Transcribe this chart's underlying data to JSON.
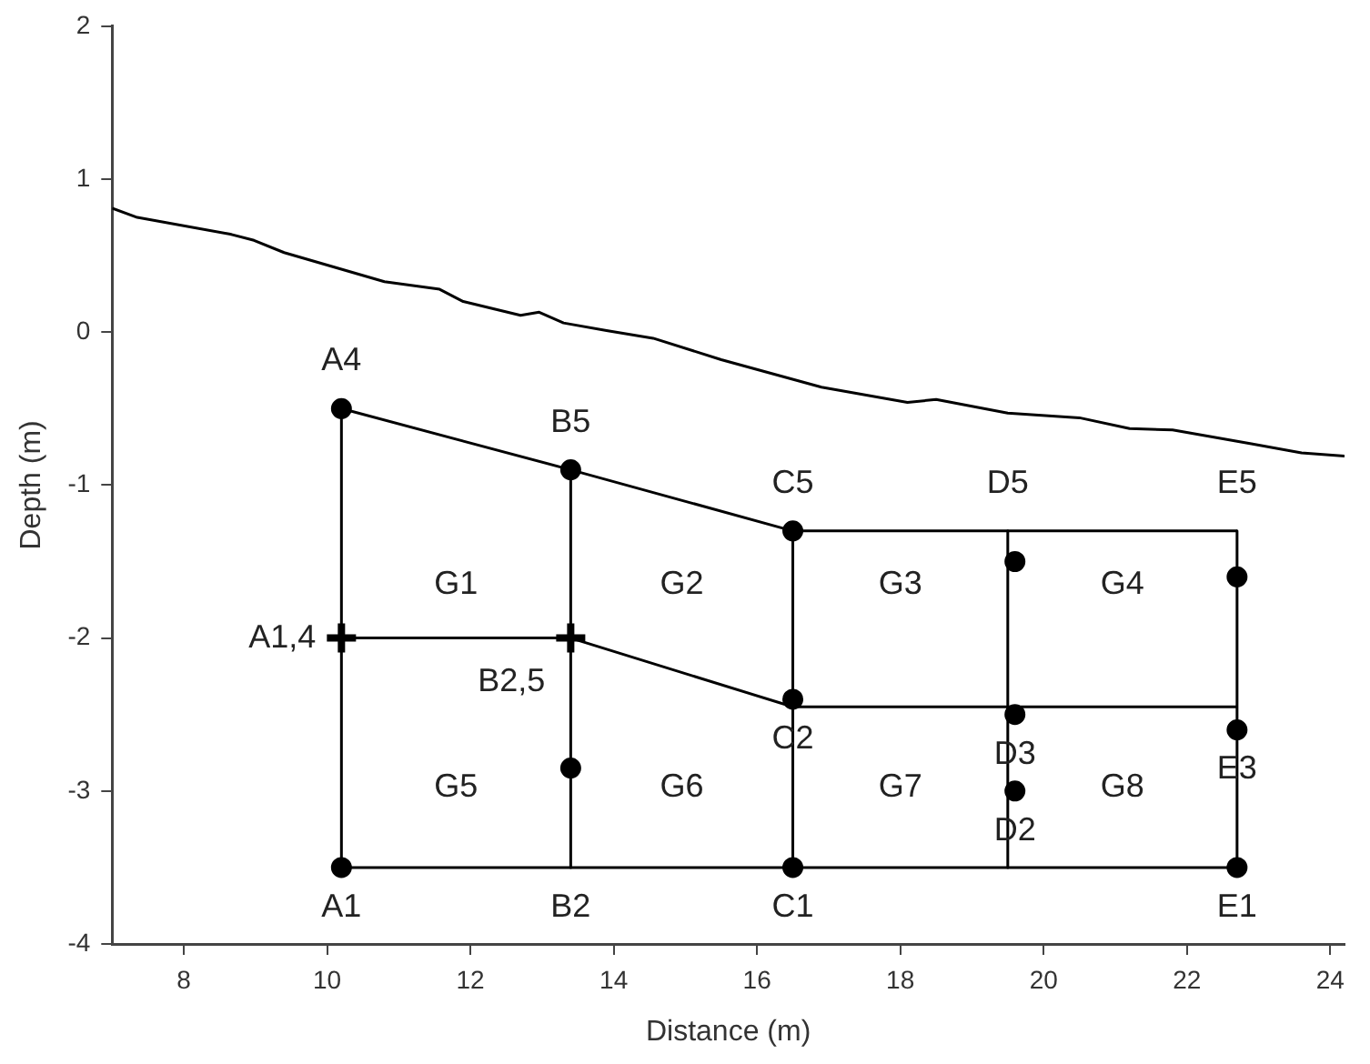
{
  "chart_data": {
    "type": "line",
    "xlabel": "Distance (m)",
    "ylabel": "Depth (m)",
    "xlim": [
      7,
      24.2
    ],
    "ylim": [
      -4,
      2
    ],
    "xticks": [
      8,
      10,
      12,
      14,
      16,
      18,
      20,
      22,
      24
    ],
    "yticks": [
      -4,
      -3,
      -2,
      -1,
      0,
      1,
      2
    ],
    "grid": false,
    "series": [
      {
        "type": "line",
        "marker": "none",
        "color": "#000000",
        "x": [
          7,
          7.35,
          8.65,
          8.98,
          9.4,
          10.8,
          11.57,
          11.9,
          12.7,
          12.96,
          13.3,
          13.9,
          14.55,
          15.5,
          16.9,
          18.1,
          18.5,
          19.5,
          20.5,
          21.2,
          21.8,
          22.9,
          23.6,
          24.2
        ],
        "values": [
          0.81,
          0.75,
          0.64,
          0.6,
          0.52,
          0.33,
          0.28,
          0.2,
          0.11,
          0.13,
          0.06,
          0.01,
          -0.04,
          -0.18,
          -0.36,
          -0.46,
          -0.44,
          -0.53,
          -0.56,
          -0.63,
          -0.64,
          -0.73,
          -0.79,
          -0.81
        ]
      },
      {
        "type": "line",
        "marker": "none",
        "color": "#000000",
        "x": [
          10.2,
          13.4,
          16.5,
          22.7
        ],
        "values": [
          -0.5,
          -0.9,
          -1.3,
          -1.3
        ]
      },
      {
        "type": "line",
        "marker": "none",
        "color": "#000000",
        "x": [
          10.2,
          13.4,
          16.5,
          22.7
        ],
        "values": [
          -2.0,
          -2.0,
          -2.45,
          -2.45
        ]
      },
      {
        "type": "line",
        "marker": "none",
        "color": "#000000",
        "x": [
          10.2,
          22.7
        ],
        "values": [
          -3.5,
          -3.5
        ]
      },
      {
        "type": "line",
        "marker": "none",
        "color": "#000000",
        "x": [
          10.2,
          10.2
        ],
        "values": [
          -0.5,
          -3.5
        ]
      },
      {
        "type": "line",
        "marker": "none",
        "color": "#000000",
        "x": [
          13.4,
          13.4
        ],
        "values": [
          -0.9,
          -3.5
        ]
      },
      {
        "type": "line",
        "marker": "none",
        "color": "#000000",
        "x": [
          16.5,
          16.5
        ],
        "values": [
          -1.3,
          -3.5
        ]
      },
      {
        "type": "line",
        "marker": "none",
        "color": "#000000",
        "x": [
          19.5,
          19.5
        ],
        "values": [
          -1.3,
          -3.5
        ]
      },
      {
        "type": "line",
        "marker": "none",
        "color": "#000000",
        "x": [
          22.7,
          22.7
        ],
        "values": [
          -1.3,
          -3.5
        ]
      },
      {
        "type": "scatter",
        "marker": "circle",
        "color": "#000000",
        "x": [
          10.2,
          13.4,
          16.5,
          19.6,
          22.7,
          16.5,
          19.6,
          19.6,
          22.7,
          13.4,
          10.2,
          16.5,
          22.7
        ],
        "values": [
          -0.5,
          -0.9,
          -1.3,
          -1.5,
          -1.6,
          -2.4,
          -2.5,
          -3.0,
          -2.6,
          -2.85,
          -3.5,
          -3.5,
          -3.5
        ]
      },
      {
        "type": "scatter",
        "marker": "cross",
        "color": "#000000",
        "x": [
          10.2,
          13.4
        ],
        "values": [
          -2.0,
          -2.0
        ]
      }
    ],
    "annotations": [
      {
        "text": "A4",
        "x": 10.2,
        "y": -0.5
      },
      {
        "text": "B5",
        "x": 13.4,
        "y": -0.9
      },
      {
        "text": "C5",
        "x": 16.5,
        "y": -1.3
      },
      {
        "text": "D5",
        "x": 19.5,
        "y": -1.3
      },
      {
        "text": "E5",
        "x": 22.7,
        "y": -1.3
      },
      {
        "text": "A1,4",
        "x": 10.2,
        "y": -2.0
      },
      {
        "text": "B2,5",
        "x": 13.4,
        "y": -2.0
      },
      {
        "text": "C2",
        "x": 16.5,
        "y": -2.4
      },
      {
        "text": "D3",
        "x": 19.6,
        "y": -2.5
      },
      {
        "text": "D2",
        "x": 19.6,
        "y": -3.0
      },
      {
        "text": "E3",
        "x": 22.7,
        "y": -2.6
      },
      {
        "text": "A1",
        "x": 10.2,
        "y": -3.5
      },
      {
        "text": "B2",
        "x": 13.4,
        "y": -3.5
      },
      {
        "text": "C1",
        "x": 16.5,
        "y": -3.5
      },
      {
        "text": "E1",
        "x": 22.7,
        "y": -3.5
      },
      "G1",
      "G2",
      "G3",
      "G4",
      "G5",
      "G6",
      "G7",
      "G8"
    ]
  }
}
